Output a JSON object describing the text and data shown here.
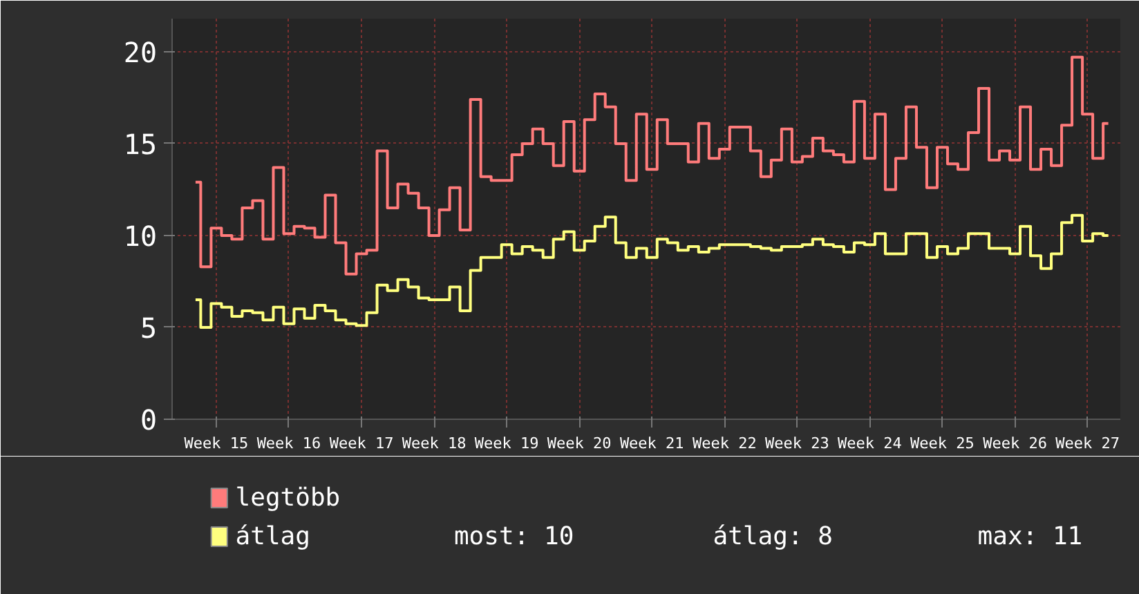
{
  "chart_data": {
    "type": "step",
    "categories": [
      null,
      null,
      "Week 15",
      null,
      null,
      null,
      null,
      null,
      null,
      "Week 16",
      null,
      null,
      null,
      null,
      null,
      null,
      "Week 17",
      null,
      null,
      null,
      null,
      null,
      null,
      "Week 18",
      null,
      null,
      null,
      null,
      null,
      null,
      "Week 19",
      null,
      null,
      null,
      null,
      null,
      null,
      "Week 20",
      null,
      null,
      null,
      null,
      null,
      null,
      "Week 21",
      null,
      null,
      null,
      null,
      null,
      null,
      "Week 22",
      null,
      null,
      null,
      null,
      null,
      null,
      "Week 23",
      null,
      null,
      null,
      null,
      null,
      null,
      "Week 24",
      null,
      null,
      null,
      null,
      null,
      null,
      "Week 25",
      null,
      null,
      null,
      null,
      null,
      null,
      "Week 26",
      null,
      null,
      null,
      null,
      null,
      null,
      "Week 27",
      null,
      null
    ],
    "series": [
      {
        "name": "legtöbb",
        "color": "#ff7b7b",
        "values": [
          12.9,
          8.3,
          10.4,
          10.0,
          9.8,
          11.5,
          11.9,
          9.8,
          13.7,
          10.1,
          10.5,
          10.4,
          9.9,
          12.2,
          9.6,
          7.9,
          9.0,
          9.2,
          14.6,
          11.5,
          12.8,
          12.3,
          11.5,
          10.0,
          11.4,
          12.6,
          10.3,
          17.4,
          13.2,
          13.0,
          13.0,
          14.4,
          15.0,
          15.8,
          15.0,
          13.8,
          16.2,
          13.5,
          16.3,
          17.7,
          17.0,
          15.0,
          13.0,
          16.6,
          13.6,
          16.3,
          15.0,
          15.0,
          14.0,
          16.1,
          14.2,
          14.7,
          15.9,
          15.9,
          14.6,
          13.2,
          14.1,
          15.8,
          14.0,
          14.3,
          15.3,
          14.6,
          14.4,
          14.0,
          17.3,
          14.2,
          16.6,
          12.5,
          14.2,
          17.0,
          14.8,
          12.6,
          14.8,
          13.9,
          13.6,
          15.6,
          18.0,
          14.1,
          14.6,
          14.1,
          17.0,
          13.6,
          14.7,
          13.8,
          16.0,
          19.7,
          16.6,
          14.2,
          16.1
        ]
      },
      {
        "name": "átlag",
        "color": "#ffff7f",
        "values": [
          6.5,
          5.0,
          6.3,
          6.1,
          5.6,
          5.9,
          5.8,
          5.4,
          6.1,
          5.2,
          6.0,
          5.5,
          6.2,
          5.9,
          5.4,
          5.2,
          5.1,
          5.8,
          7.3,
          7.0,
          7.6,
          7.2,
          6.6,
          6.5,
          6.5,
          7.2,
          5.9,
          8.1,
          8.8,
          8.8,
          9.5,
          9.0,
          9.4,
          9.2,
          8.8,
          9.8,
          10.2,
          9.2,
          9.7,
          10.5,
          11.0,
          9.6,
          8.8,
          9.3,
          8.8,
          9.8,
          9.6,
          9.2,
          9.4,
          9.1,
          9.3,
          9.5,
          9.5,
          9.5,
          9.4,
          9.3,
          9.2,
          9.4,
          9.4,
          9.5,
          9.8,
          9.5,
          9.4,
          9.1,
          9.6,
          9.5,
          10.1,
          9.0,
          9.0,
          10.1,
          10.1,
          8.8,
          9.4,
          9.0,
          9.3,
          10.1,
          10.1,
          9.3,
          9.3,
          9.0,
          10.5,
          8.9,
          8.2,
          9.0,
          10.7,
          11.1,
          9.7,
          10.1,
          10.0
        ]
      }
    ],
    "ylim": [
      0,
      21.8
    ],
    "yticks": [
      0,
      5,
      10,
      15,
      20
    ],
    "grid": true,
    "legend": "bottom",
    "annotations": [
      "most: 10",
      "átlag: 8",
      "max: 11"
    ]
  }
}
